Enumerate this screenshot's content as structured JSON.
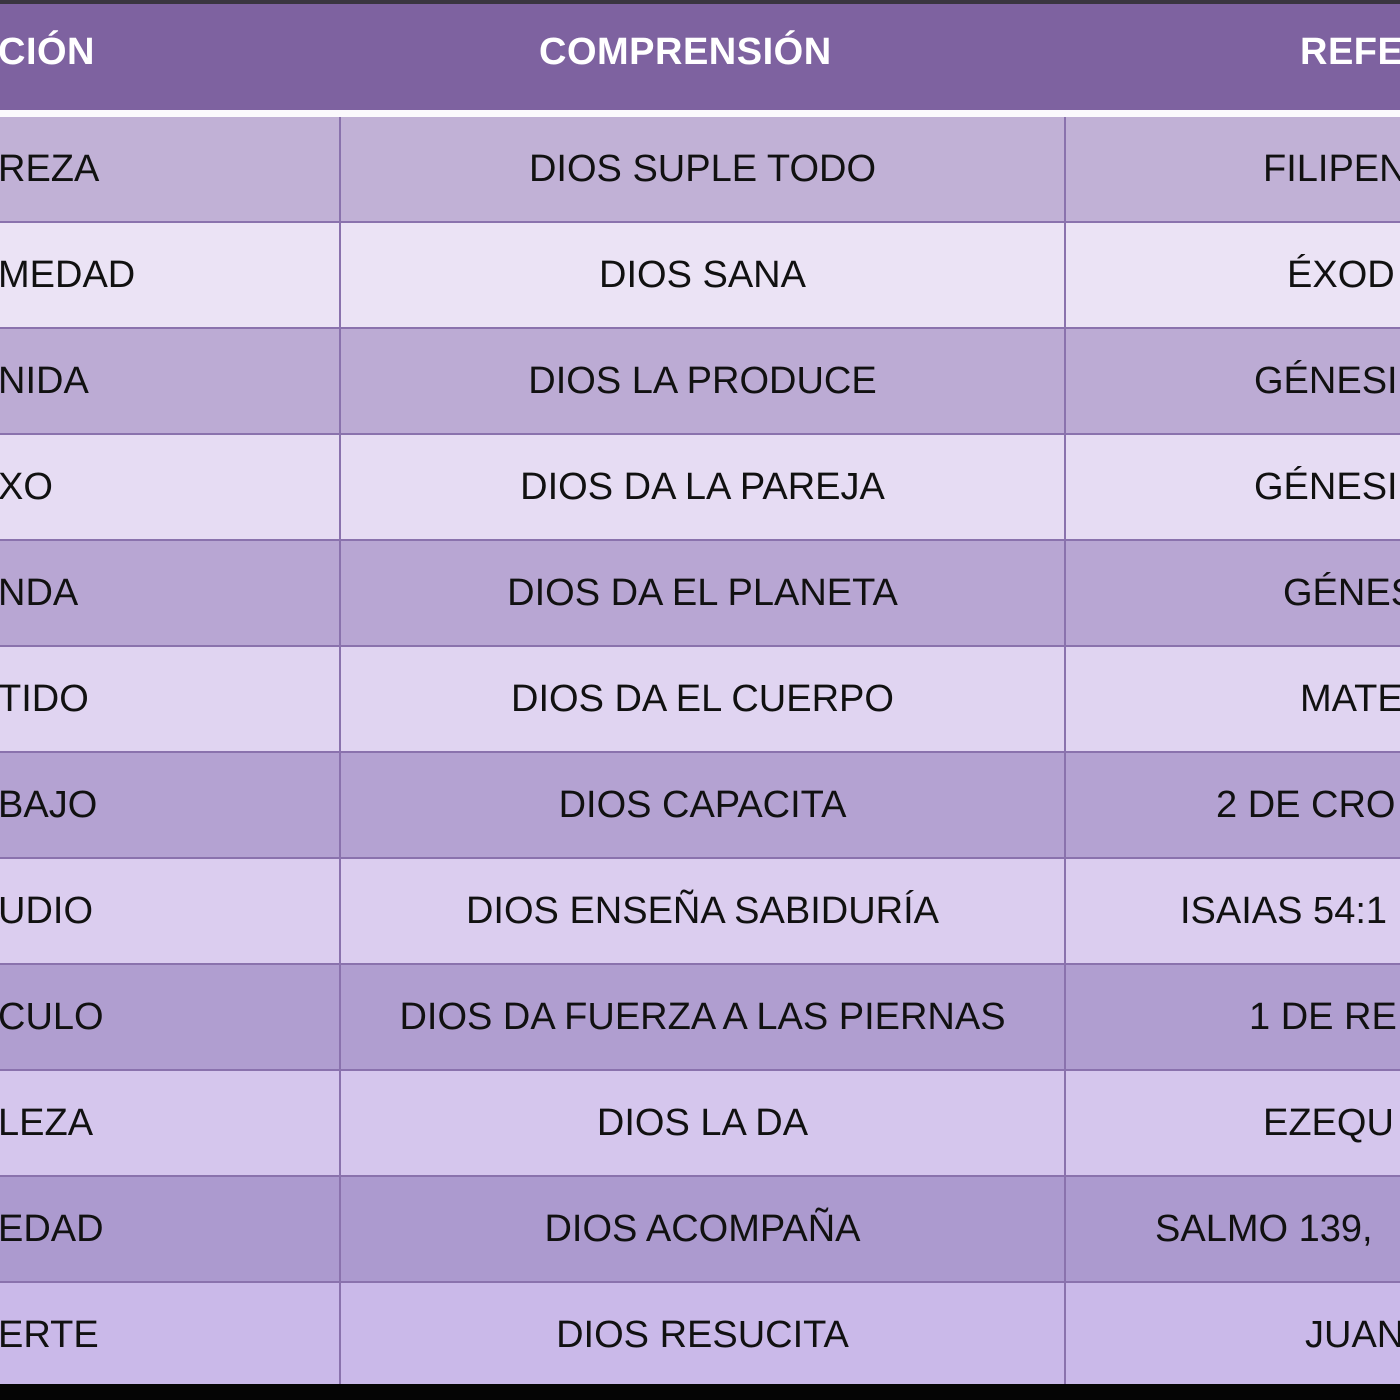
{
  "colors": {
    "header": "#7e62a0",
    "header_text": "#ffffff",
    "grid": "#8a72ad"
  },
  "header": {
    "col1": "CIÓN",
    "col2": "COMPRENSIÓN",
    "col3": "REFE"
  },
  "rows": [
    {
      "c1": "REZA",
      "c2": "DIOS SUPLE TODO",
      "c3": "FILIPEN",
      "bg": "#c1b1d6"
    },
    {
      "c1": "MEDAD",
      "c2": "DIOS SANA",
      "c3": "ÉXOD",
      "bg": "#ebe3f5"
    },
    {
      "c1": "NIDA",
      "c2": "DIOS LA PRODUCE",
      "c3": "GÉNESI",
      "bg": "#bcabd4"
    },
    {
      "c1": "XO",
      "c2": "DIOS DA LA PAREJA",
      "c3": "GÉNESI",
      "bg": "#e6dcf3"
    },
    {
      "c1": "NDA",
      "c2": "DIOS DA EL PLANETA",
      "c3": "GÉNES",
      "bg": "#b8a6d3"
    },
    {
      "c1": "TIDO",
      "c2": "DIOS DA EL CUERPO",
      "c3": "MATE",
      "bg": "#e0d4f1"
    },
    {
      "c1": "BAJO",
      "c2": "DIOS CAPACITA",
      "c3": "2 DE CRO",
      "bg": "#b4a2d2"
    },
    {
      "c1": "UDIO",
      "c2": "DIOS ENSEÑA SABIDURÍA",
      "c3": "ISAIAS 54:1",
      "bg": "#dbcdef"
    },
    {
      "c1": "CULO",
      "c2": "DIOS DA FUERZA A LAS PIERNAS",
      "c3": "1 DE RE",
      "bg": "#b09ed0"
    },
    {
      "c1": "LEZA",
      "c2": "DIOS LA DA",
      "c3": "EZEQU",
      "bg": "#d5c6ed"
    },
    {
      "c1": "EDAD",
      "c2": "DIOS ACOMPAÑA",
      "c3": "SALMO 139,",
      "bg": "#ac9acf"
    },
    {
      "c1": "ERTE",
      "c2": "DIOS RESUCITA",
      "c3": "JUAN",
      "bg": "#cab9e9"
    }
  ]
}
